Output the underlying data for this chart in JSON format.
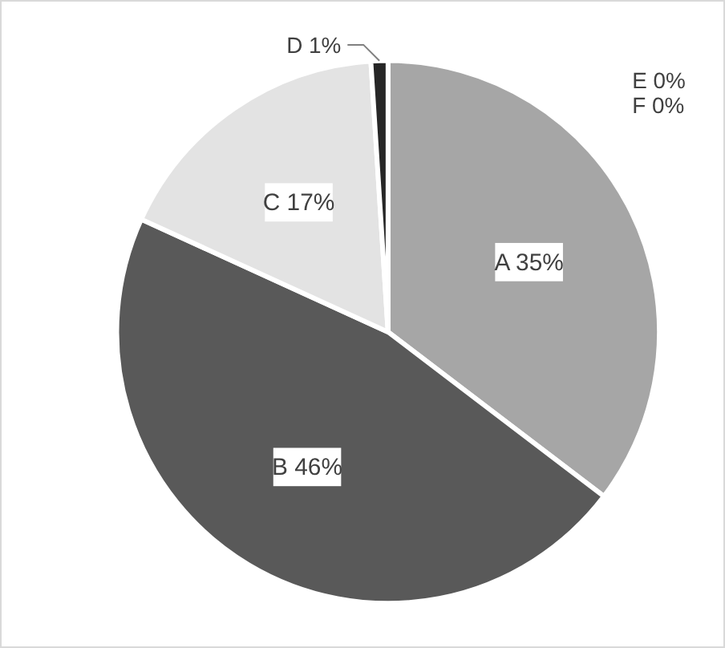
{
  "chart_data": {
    "type": "pie",
    "categories": [
      "A",
      "B",
      "C",
      "D",
      "E",
      "F"
    ],
    "values": [
      35,
      46,
      17,
      1,
      0,
      0
    ],
    "colors": [
      "#a6a6a6",
      "#595959",
      "#e3e3e3",
      "#262626",
      "#808080",
      "#808080"
    ],
    "value_labels": [
      "35%",
      "46%",
      "17%",
      "1%",
      "0%",
      "0%"
    ]
  }
}
